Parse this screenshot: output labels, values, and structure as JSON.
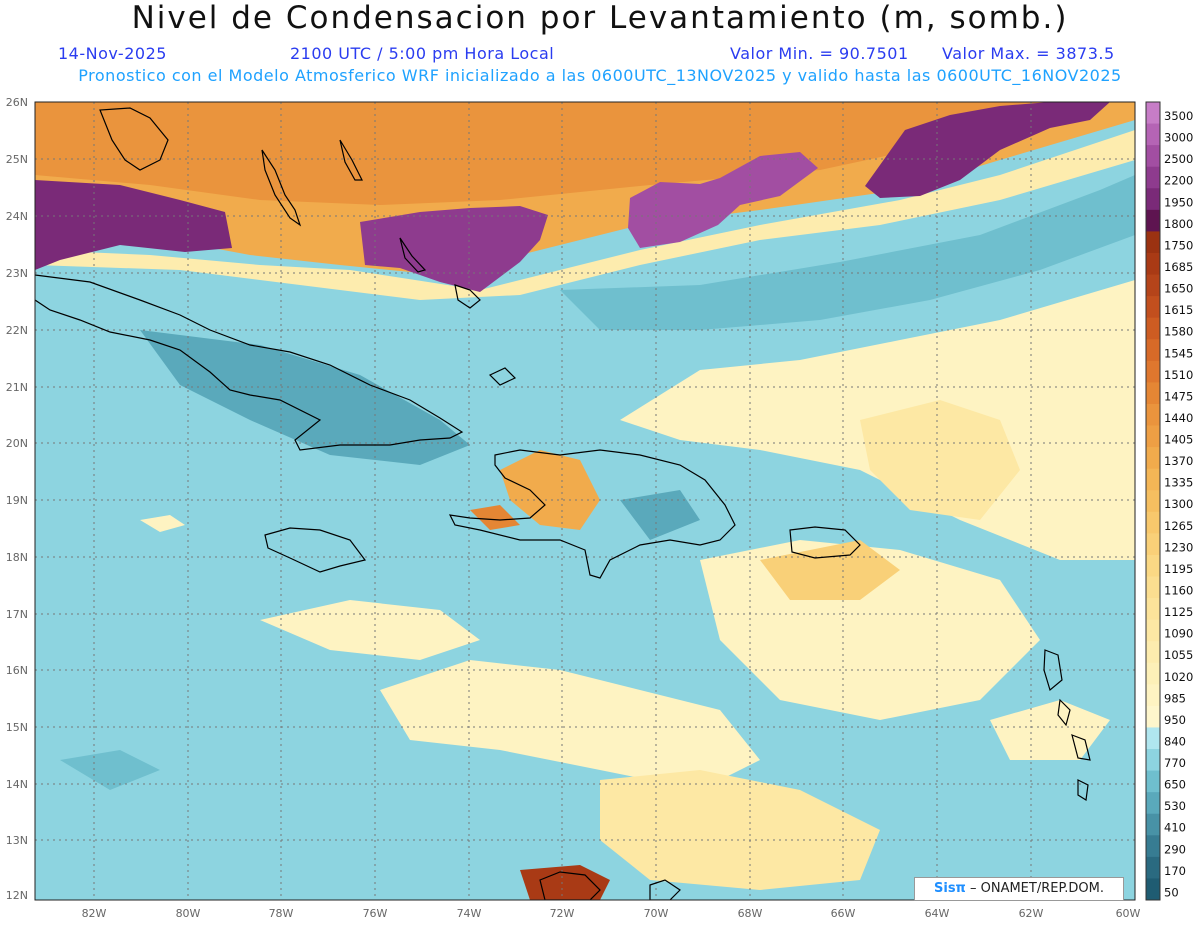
{
  "header": {
    "title": "Nivel de Condensacion por Levantamiento (m, somb.)",
    "date": "14-Nov-2025",
    "time": "2100 UTC / 5:00 pm Hora Local",
    "vmin": "Valor Min. = 90.7501",
    "vmax": "Valor Max. = 3873.5",
    "model_line": "Pronostico con el Modelo Atmosferico WRF inicializado a las 0600UTC_13NOV2025 y valido hasta las  0600UTC_16NOV2025"
  },
  "credit": {
    "logo": "Sisπ",
    "text": " – ONAMET/REP.DOM."
  },
  "map": {
    "lon_labels": [
      "82W",
      "80W",
      "78W",
      "76W",
      "74W",
      "72W",
      "70W",
      "68W",
      "66W",
      "64W",
      "62W",
      "60W"
    ],
    "lat_labels": [
      "26N",
      "25N",
      "24N",
      "23N",
      "22N",
      "21N",
      "20N",
      "19N",
      "18N",
      "17N",
      "16N",
      "15N",
      "14N",
      "13N",
      "12N"
    ],
    "lon_range": [
      -83.3,
      -59.8
    ],
    "lat_range": [
      11.9,
      26.0
    ]
  },
  "colorbar": {
    "labels": [
      "3500",
      "3000",
      "2500",
      "2200",
      "1950",
      "1800",
      "1750",
      "1685",
      "1650",
      "1615",
      "1580",
      "1545",
      "1510",
      "1475",
      "1440",
      "1405",
      "1370",
      "1335",
      "1300",
      "1265",
      "1230",
      "1195",
      "1160",
      "1125",
      "1090",
      "1055",
      "1020",
      "985",
      "950",
      "840",
      "770",
      "650",
      "530",
      "410",
      "290",
      "170",
      "50"
    ],
    "colors": [
      "#c77dc7",
      "#b564b5",
      "#a24ea2",
      "#8e3b8e",
      "#7a2a78",
      "#5e1450",
      "#9b3211",
      "#a93a15",
      "#b5441a",
      "#c24f1e",
      "#cd5c22",
      "#d76a28",
      "#df772e",
      "#e58634",
      "#ea943d",
      "#ee9f44",
      "#f1ab4c",
      "#f4b656",
      "#f6bf60",
      "#f8c86c",
      "#f9d078",
      "#fad884",
      "#fbde90",
      "#fce39a",
      "#fde8a4",
      "#fdecae",
      "#fdf0b8",
      "#fef3c2",
      "#fef6cc",
      "#b0e6ef",
      "#8dd4e0",
      "#6fbfce",
      "#5aa9bb",
      "#4892a6",
      "#377c92",
      "#2a6a80",
      "#1f5c72"
    ]
  },
  "colors": {
    "title": "#111111",
    "line2": "#2a3cf0",
    "line3": "#1fa2ff",
    "coast": "#000000"
  }
}
